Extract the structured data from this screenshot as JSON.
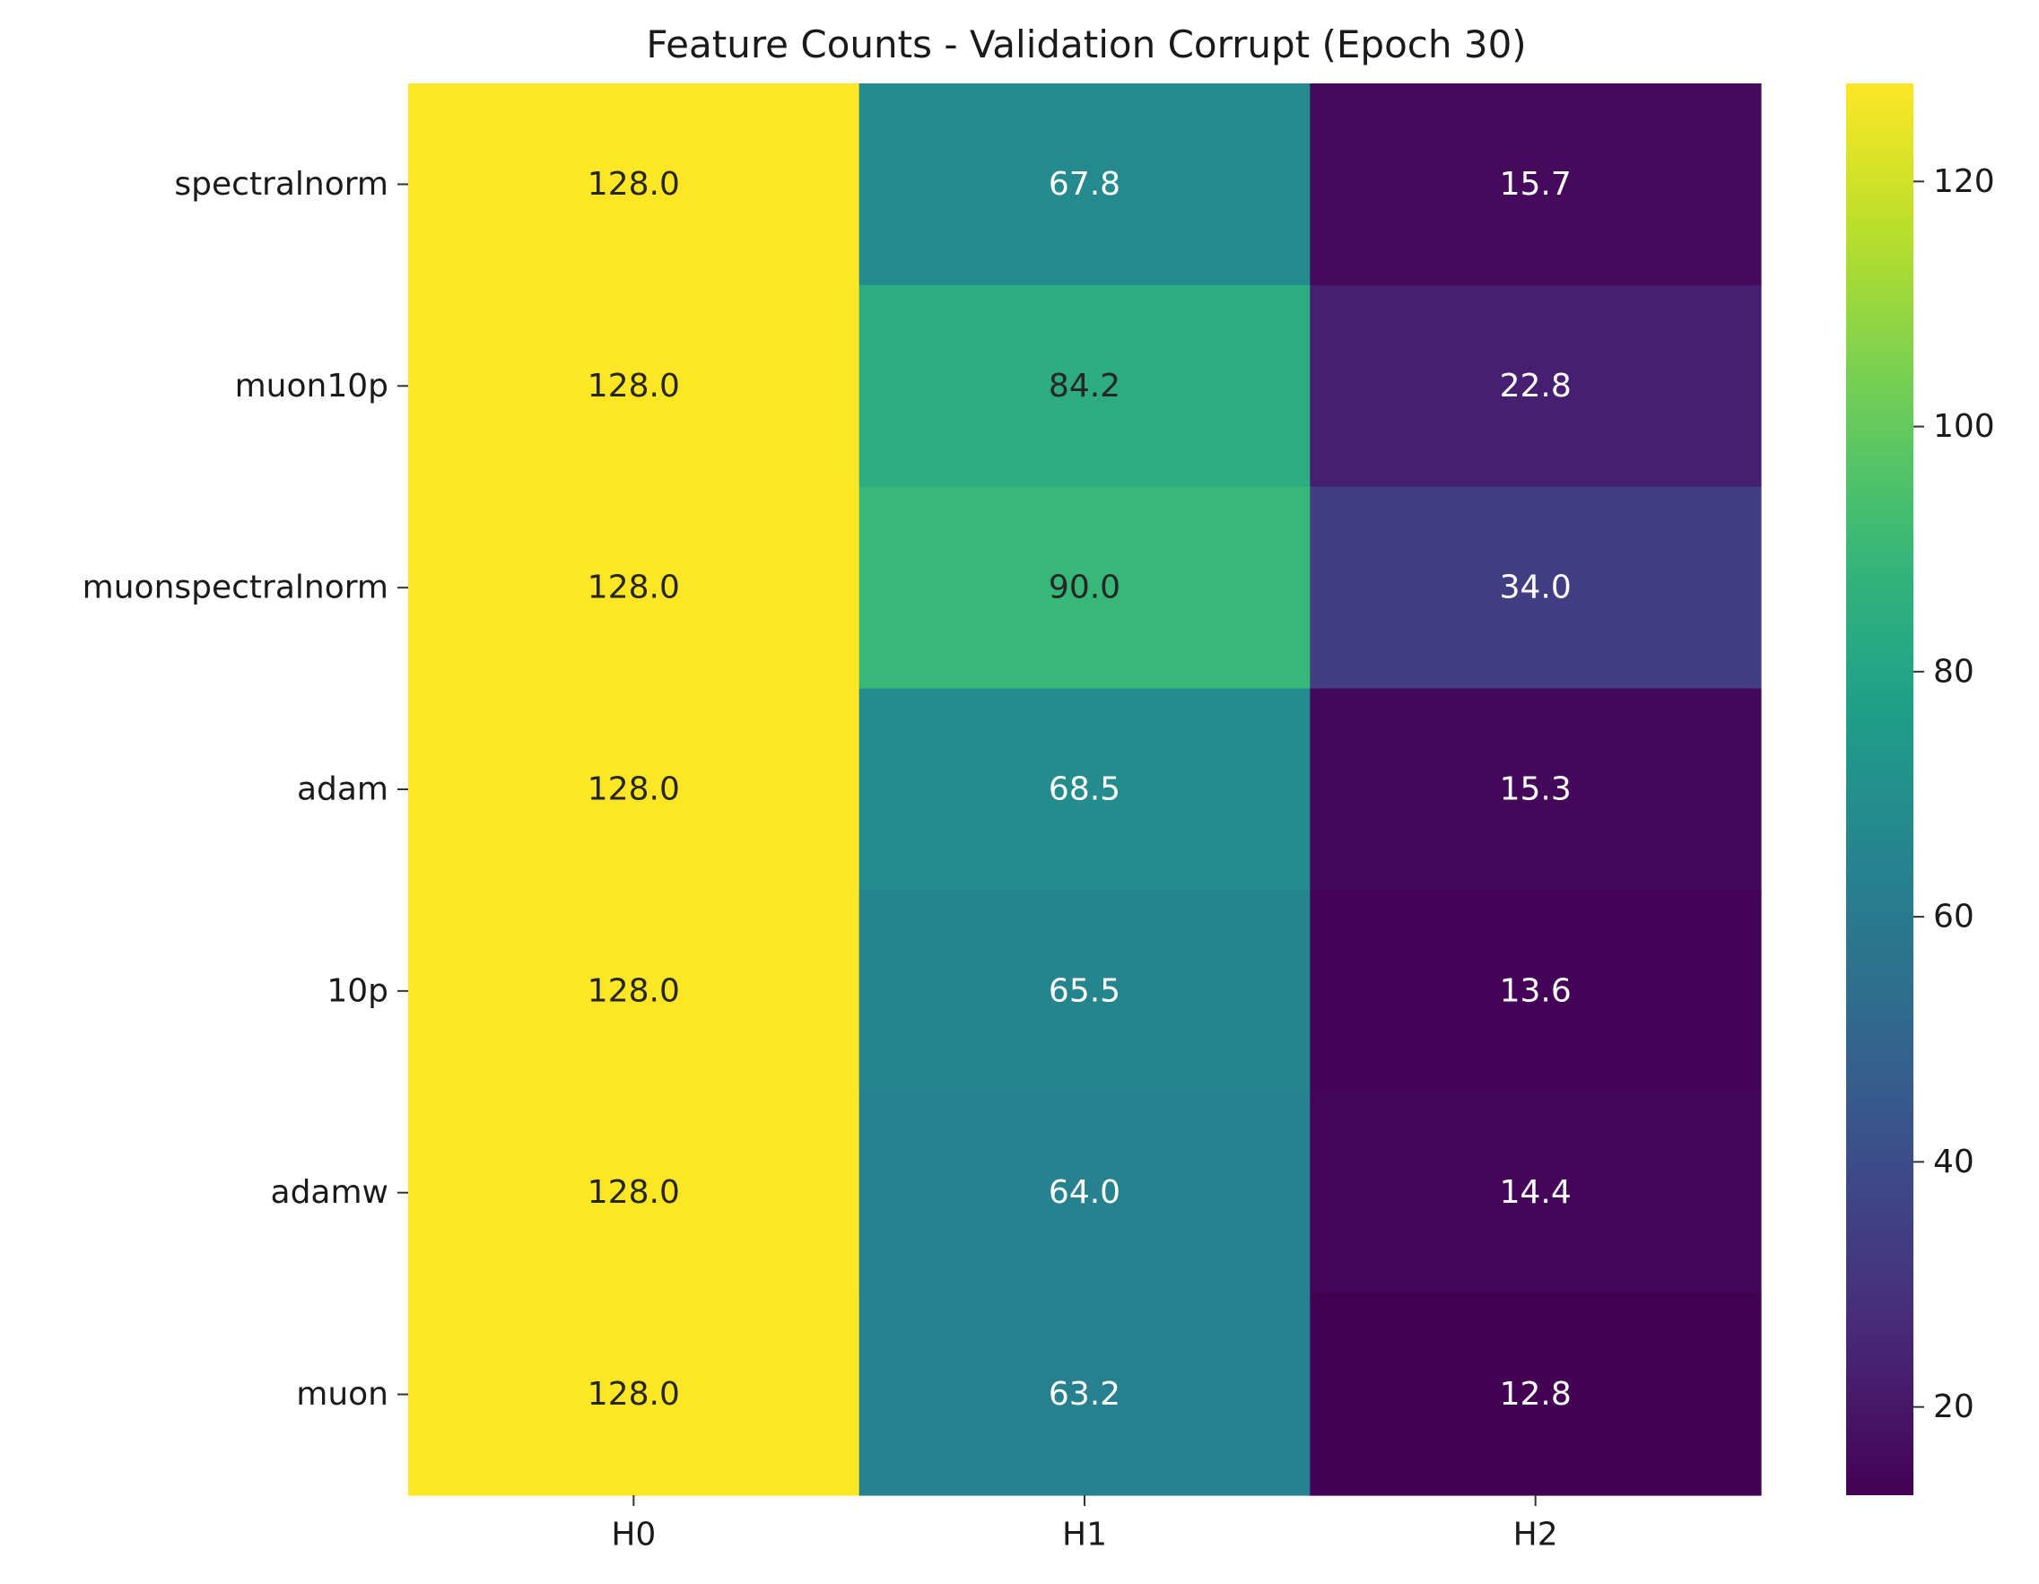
{
  "chart_data": {
    "type": "heatmap",
    "title": "Feature Counts - Validation Corrupt (Epoch 30)",
    "xlabel": "",
    "ylabel": "",
    "columns": [
      "H0",
      "H1",
      "H2"
    ],
    "rows": [
      "spectralnorm",
      "muon10p",
      "muonspectralnorm",
      "adam",
      "10p",
      "adamw",
      "muon"
    ],
    "values": [
      [
        128.0,
        67.8,
        15.7
      ],
      [
        128.0,
        84.2,
        22.8
      ],
      [
        128.0,
        90.0,
        34.0
      ],
      [
        128.0,
        68.5,
        15.3
      ],
      [
        128.0,
        65.5,
        13.6
      ],
      [
        128.0,
        64.0,
        14.4
      ],
      [
        128.0,
        63.2,
        12.8
      ]
    ],
    "value_format": "1 decimal",
    "colormap": "viridis",
    "color_range": [
      12.8,
      128.0
    ],
    "colorbar_ticks": [
      20,
      40,
      60,
      80,
      100,
      120
    ],
    "grid": false
  }
}
